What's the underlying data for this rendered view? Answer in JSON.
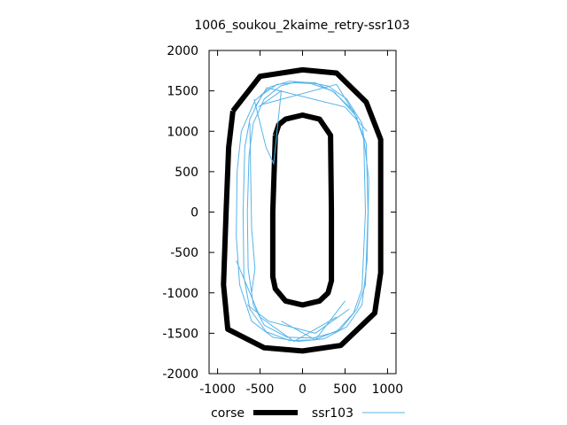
{
  "chart_data": {
    "type": "line",
    "title": "1006_soukou_2kaime_retry-ssr103",
    "xlabel": "",
    "ylabel": "",
    "xlim": [
      -1100,
      1100
    ],
    "ylim": [
      -2000,
      2000
    ],
    "x_ticks": [
      -1000,
      -500,
      0,
      500,
      1000
    ],
    "x_tick_labels": [
      "-1000",
      "-500",
      "0",
      "500",
      "1000"
    ],
    "y_ticks": [
      2000,
      1500,
      1000,
      500,
      0,
      -500,
      -1000,
      -1500,
      -2000
    ],
    "y_tick_labels": [
      "2000",
      "1500",
      "1000",
      "500",
      "0",
      "-500",
      "-1000",
      "-1500",
      "-2000"
    ],
    "grid": false,
    "legend_position": "bottom",
    "series": [
      {
        "name": "corse",
        "color": "#000000",
        "outer": {
          "x": [
            -820,
            -500,
            0,
            400,
            750,
            920,
            920,
            850,
            450,
            0,
            -450,
            -880,
            -930,
            -900,
            -870,
            -820
          ],
          "y": [
            1250,
            1680,
            1760,
            1720,
            1360,
            900,
            -750,
            -1250,
            -1650,
            -1720,
            -1680,
            -1450,
            -900,
            0,
            800,
            1250
          ]
        },
        "inner": {
          "x": [
            -320,
            -280,
            -200,
            0,
            200,
            330,
            340,
            340,
            300,
            200,
            0,
            -200,
            -320,
            -350,
            -350,
            -320
          ],
          "y": [
            950,
            1080,
            1150,
            1200,
            1150,
            950,
            0,
            -850,
            -1000,
            -1100,
            -1150,
            -1100,
            -950,
            -800,
            0,
            950
          ]
        }
      },
      {
        "name": "ssr103",
        "color": "#56b4e9",
        "laps": [
          {
            "x": [
              -620,
              -480,
              -300,
              -100,
              100,
              350,
              600,
              750,
              770,
              740,
              640,
              450,
              150,
              -150,
              -430,
              -620,
              -690,
              -700,
              -680,
              -620
            ],
            "y": [
              1150,
              1450,
              1580,
              1600,
              1590,
              1500,
              1250,
              850,
              0,
              -900,
              -1200,
              -1450,
              -1580,
              -1590,
              -1480,
              -1200,
              -800,
              0,
              800,
              1150
            ]
          },
          {
            "x": [
              -580,
              -450,
              -260,
              -80,
              150,
              380,
              620,
              720,
              740,
              700,
              600,
              400,
              120,
              -180,
              -450,
              -580,
              -640,
              -650,
              -630,
              -580
            ],
            "y": [
              1100,
              1400,
              1560,
              1610,
              1600,
              1480,
              1200,
              900,
              0,
              -950,
              -1250,
              -1480,
              -1560,
              -1550,
              -1400,
              -1150,
              -700,
              0,
              700,
              1100
            ]
          },
          {
            "x": [
              -720,
              -560,
              -380,
              -150,
              100,
              300,
              520,
              700,
              780,
              760,
              700,
              520,
              250,
              -50,
              -350,
              -600,
              -740,
              -780,
              -770,
              -720
            ],
            "y": [
              1000,
              1380,
              1550,
              1620,
              1600,
              1560,
              1400,
              1100,
              400,
              -600,
              -1150,
              -1420,
              -1570,
              -1600,
              -1550,
              -1350,
              -900,
              -300,
              500,
              1000
            ]
          }
        ],
        "strays": [
          {
            "x": [
              -480,
              400,
              650
            ],
            "y": [
              1330,
              1580,
              1150
            ]
          },
          {
            "x": [
              -560,
              -420,
              500,
              760
            ],
            "y": [
              1300,
              1540,
              1300,
              1000
            ]
          },
          {
            "x": [
              -650,
              -400,
              150,
              550
            ],
            "y": [
              -1150,
              -1350,
              -1500,
              -1200
            ]
          },
          {
            "x": [
              -250,
              150,
              500
            ],
            "y": [
              -1350,
              -1580,
              -1100
            ]
          },
          {
            "x": [
              -780,
              -500,
              -100,
              400
            ],
            "y": [
              -600,
              -1300,
              -1600,
              -1300
            ]
          },
          {
            "x": [
              -570,
              -430,
              -340,
              -250,
              -520
            ],
            "y": [
              1400,
              800,
              600,
              1500,
              1300
            ]
          },
          {
            "x": [
              -620,
              -600,
              -560,
              -600
            ],
            "y": [
              1100,
              -200,
              -700,
              -1000
            ]
          }
        ]
      }
    ]
  }
}
